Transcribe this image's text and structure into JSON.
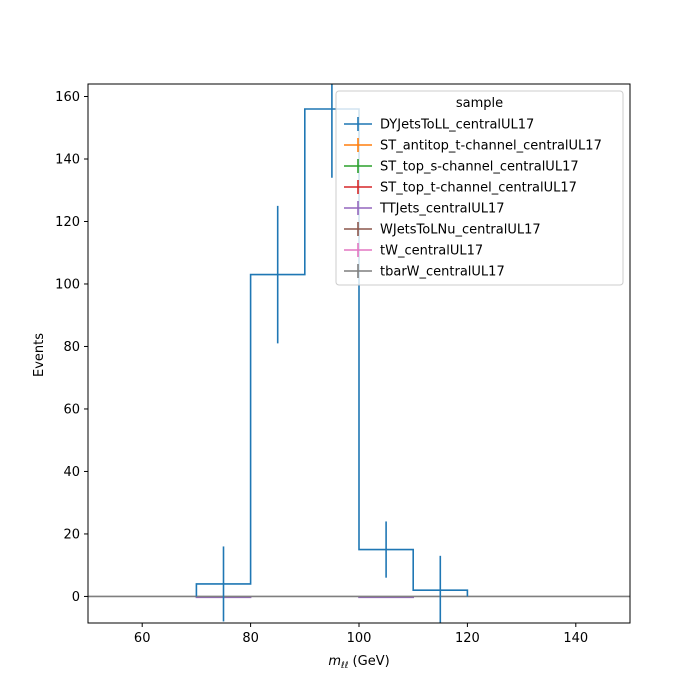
{
  "chart_data": {
    "type": "step-histogram",
    "xlabel_var": "m",
    "xlabel_sub": "ℓℓ",
    "xlabel_unit": " (GeV)",
    "ylabel": "Events",
    "xlim": [
      50,
      150
    ],
    "ylim": [
      -8.5,
      164
    ],
    "xticks": [
      60,
      80,
      100,
      120,
      140
    ],
    "yticks": [
      0,
      20,
      40,
      60,
      80,
      100,
      120,
      140,
      160
    ],
    "grid": false,
    "legend": {
      "title": "sample",
      "placement": "top-right"
    },
    "series": [
      {
        "name": "DYJetsToLL_centralUL17",
        "color": "#1f77b4",
        "bins": [
          {
            "x0": 70,
            "x1": 80,
            "y": 4,
            "err": 12
          },
          {
            "x0": 80,
            "x1": 90,
            "y": 103,
            "err": 22
          },
          {
            "x0": 90,
            "x1": 100,
            "y": 156,
            "err": 22
          },
          {
            "x0": 100,
            "x1": 110,
            "y": 15,
            "err": 9
          },
          {
            "x0": 110,
            "x1": 120,
            "y": 2,
            "err": 11
          }
        ]
      },
      {
        "name": "ST_antitop_t-channel_centralUL17",
        "color": "#ff7f0e",
        "bins": []
      },
      {
        "name": "ST_top_s-channel_centralUL17",
        "color": "#2ca02c",
        "bins": []
      },
      {
        "name": "ST_top_t-channel_centralUL17",
        "color": "#d62728",
        "bins": []
      },
      {
        "name": "TTJets_centralUL17",
        "color": "#9467bd",
        "bins": [
          {
            "x0": 70,
            "x1": 80,
            "y": -0.3,
            "err": 0
          },
          {
            "x0": 100,
            "x1": 110,
            "y": -0.3,
            "err": 0
          }
        ]
      },
      {
        "name": "WJetsToLNu_centralUL17",
        "color": "#8c564b",
        "bins": []
      },
      {
        "name": "tW_centralUL17",
        "color": "#e377c2",
        "bins": []
      },
      {
        "name": "tbarW_centralUL17",
        "color": "#7f7f7f",
        "bins": [
          {
            "x0": 50,
            "x1": 150,
            "y": 0,
            "err": 0
          }
        ]
      }
    ]
  }
}
